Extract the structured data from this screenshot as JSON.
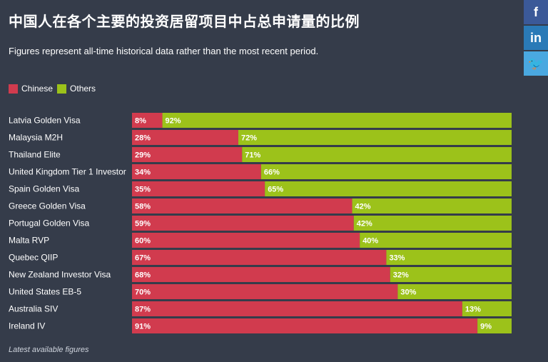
{
  "title": "中国人在各个主要的投资居留项目中占总申请量的比例",
  "subtitle": "Figures represent all-time historical data rather than the most recent period.",
  "footnote": "Latest available figures",
  "legend": [
    {
      "label": "Chinese",
      "color": "#d13b4e"
    },
    {
      "label": "Others",
      "color": "#9cc21a"
    }
  ],
  "social": [
    {
      "icon": "facebook-icon",
      "glyph": "f"
    },
    {
      "icon": "linkedin-icon",
      "glyph": "in"
    },
    {
      "icon": "twitter-icon",
      "glyph": "🐦"
    }
  ],
  "chart_data": {
    "type": "bar",
    "orientation": "horizontal",
    "stacked": true,
    "normalized": true,
    "categories": [
      "Latvia Golden Visa",
      "Malaysia M2H",
      "Thailand Elite",
      "United Kingdom Tier 1 Investor",
      "Spain Golden Visa",
      "Greece Golden Visa",
      "Portugal Golden Visa",
      "Malta RVP",
      "Quebec QIIP",
      "New Zealand Investor Visa",
      "United States EB-5",
      "Australia SIV",
      "Ireland IV"
    ],
    "series": [
      {
        "name": "Chinese",
        "color": "#d13b4e",
        "values": [
          8,
          28,
          29,
          34,
          35,
          58,
          59,
          60,
          67,
          68,
          70,
          87,
          91
        ]
      },
      {
        "name": "Others",
        "color": "#9cc21a",
        "values": [
          92,
          72,
          71,
          66,
          65,
          42,
          42,
          40,
          33,
          32,
          30,
          13,
          9
        ]
      }
    ],
    "value_suffix": "%",
    "legend_position": "top-left"
  }
}
